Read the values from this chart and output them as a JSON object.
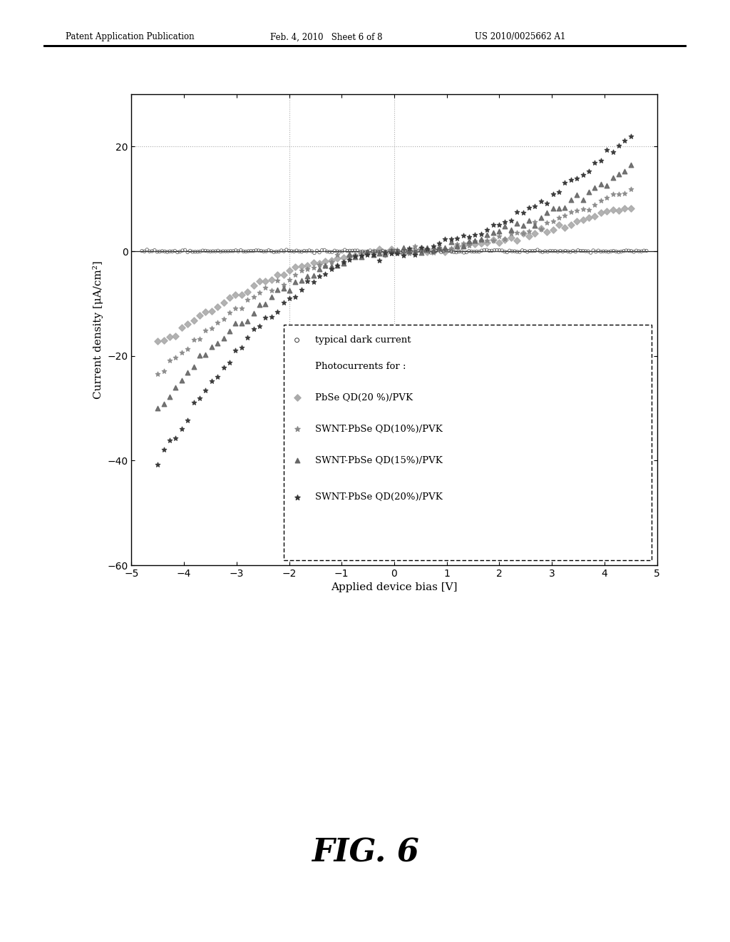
{
  "xlabel": "Applied device bias [V]",
  "ylabel": "Current density [μA/cm²]",
  "xlim": [
    -5,
    5
  ],
  "ylim": [
    -60,
    30
  ],
  "yticks": [
    -60,
    -40,
    -20,
    0,
    20
  ],
  "xticks": [
    -5,
    -4,
    -3,
    -2,
    -1,
    0,
    1,
    2,
    3,
    4,
    5
  ],
  "header_left": "Patent Application Publication",
  "header_center": "Feb. 4, 2010   Sheet 6 of 8",
  "header_right": "US 2010/0025662 A1",
  "fig_label": "FIG. 6",
  "background_color": "#ffffff",
  "legend_labels": [
    "typical dark current",
    "Photocurrents for :",
    "PbSe QD(20 %)/PVK",
    "SWNT-PbSe QD(10%)/PVK",
    "SWNT-PbSe QD(15%)/PVK",
    "SWNT-PbSe QD(20%)/PVK"
  ]
}
